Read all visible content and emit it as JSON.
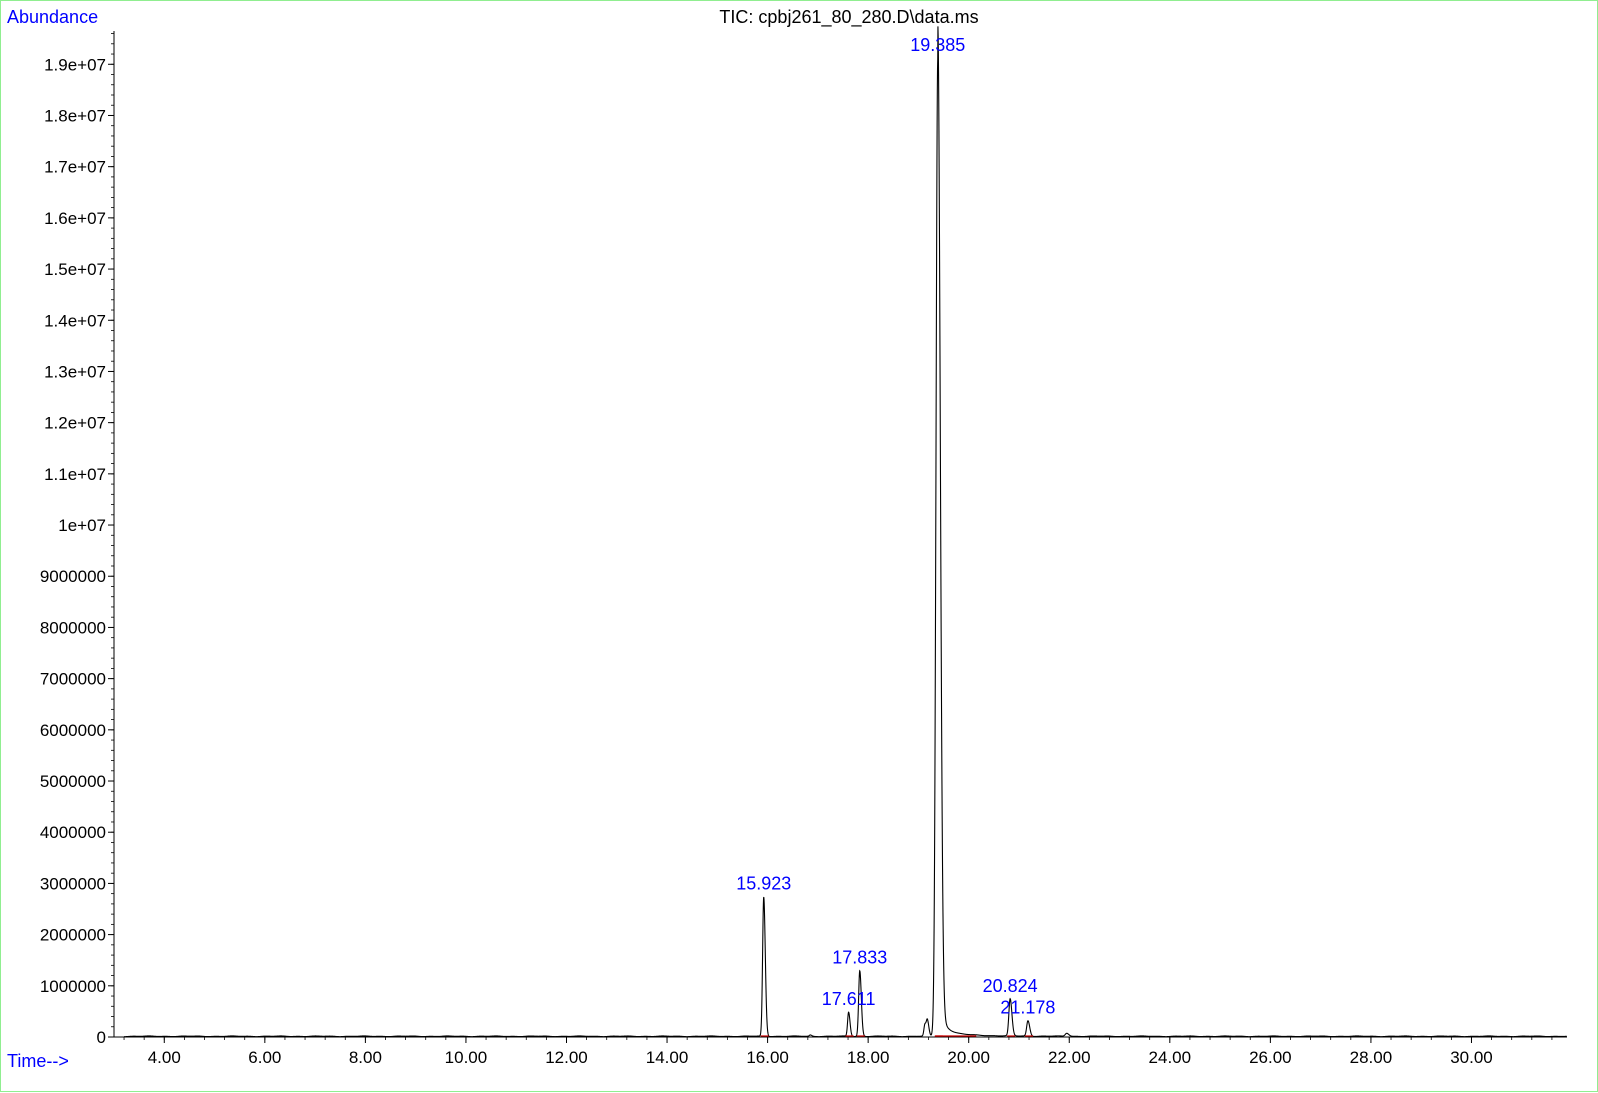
{
  "chart_data": {
    "type": "line",
    "title": "TIC: cpbj261_80_280.D\\data.ms",
    "ylabel": "Abundance",
    "xlabel": "Time-->",
    "xlim": [
      3.0,
      31.9
    ],
    "ylim": [
      0,
      19650000
    ],
    "x_ticks": [
      4,
      6,
      8,
      10,
      12,
      14,
      16,
      18,
      20,
      22,
      24,
      26,
      28,
      30
    ],
    "x_tick_labels": [
      "4.00",
      "6.00",
      "8.00",
      "10.00",
      "12.00",
      "14.00",
      "16.00",
      "18.00",
      "20.00",
      "22.00",
      "24.00",
      "26.00",
      "28.00",
      "30.00"
    ],
    "y_ticks": [
      0,
      1000000,
      2000000,
      3000000,
      4000000,
      5000000,
      6000000,
      7000000,
      8000000,
      9000000,
      10000000,
      11000000,
      12000000,
      13000000,
      14000000,
      15000000,
      16000000,
      17000000,
      18000000,
      19000000
    ],
    "y_tick_labels": [
      "0",
      "1000000",
      "2000000",
      "3000000",
      "4000000",
      "5000000",
      "6000000",
      "7000000",
      "8000000",
      "9000000",
      "1e+07",
      "1.1e+07",
      "1.2e+07",
      "1.3e+07",
      "1.4e+07",
      "1.5e+07",
      "1.6e+07",
      "1.7e+07",
      "1.8e+07",
      "1.9e+07"
    ],
    "peaks": [
      {
        "label": "15.923",
        "rt": 15.923,
        "height": 2720000,
        "width": 0.022
      },
      {
        "label": "17.611",
        "rt": 17.611,
        "height": 470000,
        "width": 0.02
      },
      {
        "label": "17.833",
        "rt": 17.833,
        "height": 1280000,
        "width": 0.022
      },
      {
        "label": "19.385",
        "rt": 19.385,
        "height": 19100000,
        "width": 0.035
      },
      {
        "label": "20.824",
        "rt": 20.824,
        "height": 720000,
        "width": 0.025
      },
      {
        "label": "21.178",
        "rt": 21.178,
        "height": 300000,
        "width": 0.025
      }
    ],
    "minor_peaks": [
      {
        "rt": 16.85,
        "height": 25000,
        "width": 0.02
      },
      {
        "rt": 19.13,
        "height": 230000,
        "width": 0.02
      },
      {
        "rt": 19.18,
        "height": 280000,
        "width": 0.02
      },
      {
        "rt": 21.95,
        "height": 60000,
        "width": 0.03
      }
    ],
    "series": [
      {
        "name": "TIC",
        "color": "#000000"
      }
    ],
    "baseline_color": "#cc0000",
    "label_color": "#0000ff",
    "frame_color": "#90ee90",
    "grid": false
  }
}
